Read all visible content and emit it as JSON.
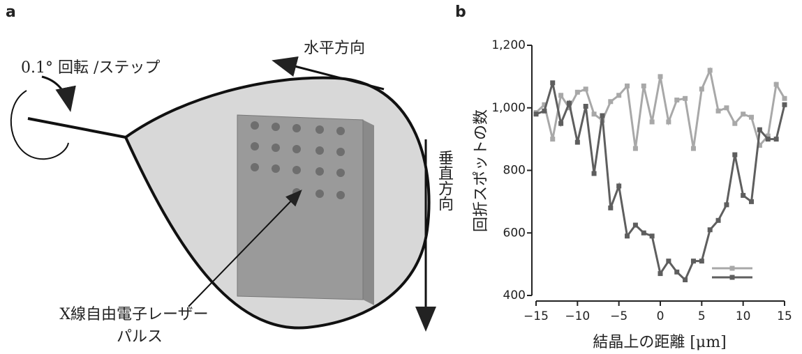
{
  "panel_labels": {
    "a": "a",
    "b": "b"
  },
  "diagram": {
    "rotation": "0.1°  回転 /ステップ",
    "horizontal": "水平方向",
    "vertical": "垂直方向",
    "pulse_line1": "X線自由電子レーザー",
    "pulse_line2": "パルス"
  },
  "chart_data": {
    "type": "line",
    "x_label": "結晶上の距離 [μm]",
    "y_label": "回折スポットの数",
    "x": [
      -15,
      -14,
      -13,
      -12,
      -11,
      -10,
      -9,
      -8,
      -7,
      -6,
      -5,
      -4,
      -3,
      -2,
      -1,
      0,
      1,
      2,
      3,
      4,
      5,
      6,
      7,
      8,
      9,
      10,
      11,
      12,
      13,
      14,
      15
    ],
    "series": [
      {
        "color": "#a8a8a8",
        "values": [
          985,
          1010,
          900,
          1040,
          1000,
          1050,
          1060,
          980,
          960,
          1020,
          1040,
          1070,
          870,
          1070,
          955,
          1100,
          955,
          1025,
          1030,
          870,
          1060,
          1120,
          990,
          1000,
          950,
          980,
          970,
          880,
          910,
          1075,
          1030
        ]
      },
      {
        "color": "#5e5e5e",
        "values": [
          980,
          990,
          1080,
          950,
          1015,
          890,
          1005,
          790,
          975,
          680,
          750,
          590,
          625,
          600,
          590,
          470,
          510,
          475,
          450,
          510,
          510,
          610,
          640,
          690,
          850,
          720,
          700,
          930,
          900,
          900,
          1010
        ]
      }
    ],
    "xlim": [
      -15,
      15
    ],
    "xticks": [
      {
        "value": -15,
        "label": "−15"
      },
      {
        "value": -10,
        "label": "−10"
      },
      {
        "value": -5,
        "label": "−5"
      },
      0,
      5,
      10,
      15
    ],
    "ylim": [
      400,
      1200
    ],
    "yticks": [
      400,
      600,
      800,
      {
        "value": 1000,
        "label": "1,000"
      },
      {
        "value": 1200,
        "label": "1,200"
      }
    ],
    "legend": "lower right"
  }
}
